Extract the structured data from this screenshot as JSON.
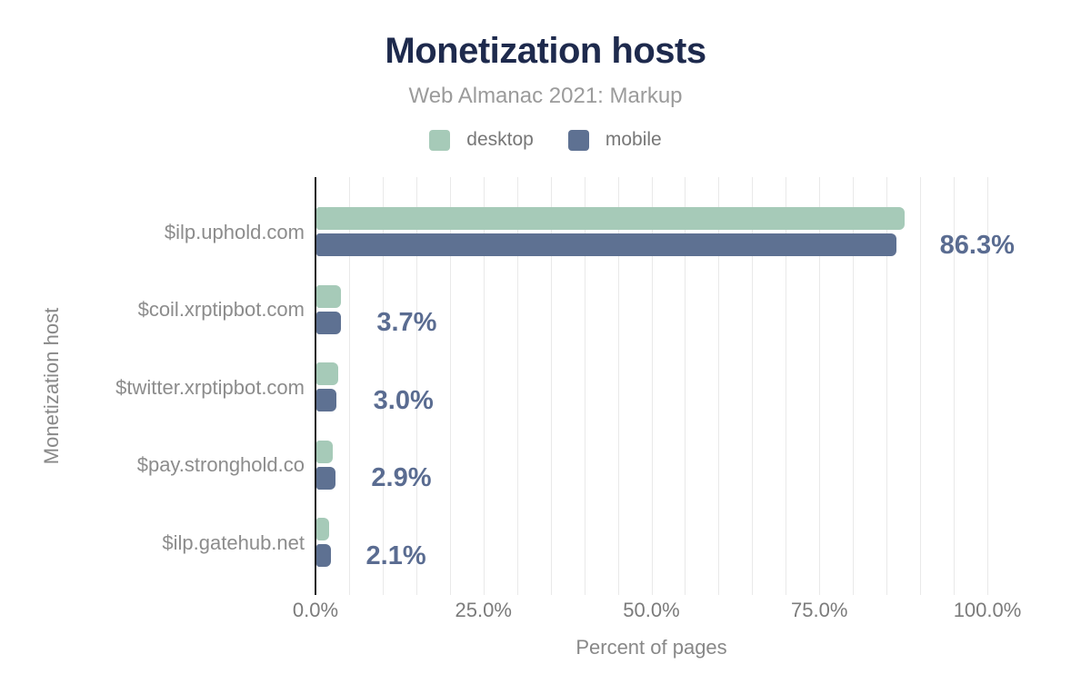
{
  "chart_data": {
    "type": "bar",
    "orientation": "horizontal",
    "title": "Monetization hosts",
    "subtitle": "Web Almanac 2021: Markup",
    "xlabel": "Percent of pages",
    "ylabel": "Monetization host",
    "categories": [
      "$ilp.uphold.com",
      "$coil.xrptipbot.com",
      "$twitter.xrptipbot.com",
      "$pay.stronghold.co",
      "$ilp.gatehub.net"
    ],
    "series": [
      {
        "name": "desktop",
        "color": "#a6cab8",
        "values": [
          87.5,
          3.6,
          3.2,
          2.5,
          1.9
        ]
      },
      {
        "name": "mobile",
        "color": "#5e7192",
        "values": [
          86.3,
          3.7,
          3.0,
          2.9,
          2.1
        ]
      }
    ],
    "value_labels": [
      "86.3%",
      "3.7%",
      "3.0%",
      "2.9%",
      "2.1%"
    ],
    "x_ticks": [
      "0.0%",
      "25.0%",
      "50.0%",
      "75.0%",
      "100.0%"
    ],
    "x_tick_values": [
      0,
      25,
      50,
      75,
      100
    ],
    "xlim": [
      0,
      105
    ],
    "grid": {
      "step": 5,
      "max": 100,
      "on": true
    },
    "legend_position": "top",
    "colors": {
      "desktop": "#a6cab8",
      "mobile": "#5e7192",
      "value_label": "#5a6c91",
      "title": "#1e2a4d",
      "subtitle": "#9b9b9b",
      "axis_text": "#7b7b7b",
      "axis_line": "#1f1f1f",
      "gridline": "#e9e9e9",
      "background": "#ffffff"
    }
  }
}
